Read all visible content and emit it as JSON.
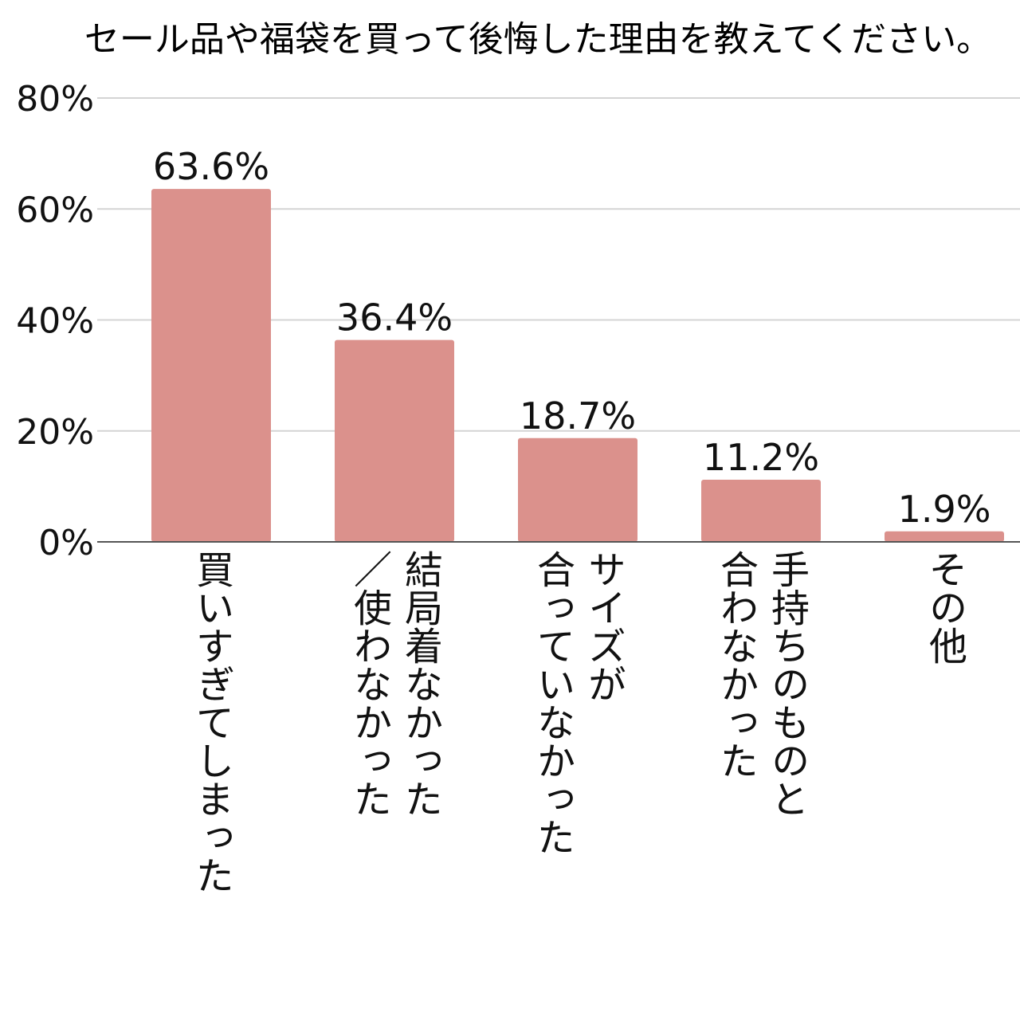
{
  "chart_data": {
    "type": "bar",
    "title": "セール品や福袋を買って後悔した理由を教えてください。",
    "categories": [
      "買いすぎてしまった",
      "結局着なかった／使わなかった",
      "サイズが合っていなかった",
      "手持ちのものと合わなかった",
      "その他"
    ],
    "category_lines": [
      [
        "買いすぎてしまった"
      ],
      [
        "結局着なかった",
        "／使わなかった"
      ],
      [
        "サイズが",
        "合っていなかった"
      ],
      [
        "手持ちのものと",
        "合わなかった"
      ],
      [
        "その他"
      ]
    ],
    "values": [
      63.6,
      36.4,
      18.7,
      11.2,
      1.9
    ],
    "data_labels": [
      "63.6%",
      "36.4%",
      "18.7%",
      "11.2%",
      "1.9%"
    ],
    "ylim": [
      0,
      80
    ],
    "yticks": [
      0,
      20,
      40,
      60,
      80
    ],
    "ytick_labels": [
      "0%",
      "20%",
      "40%",
      "60%",
      "80%"
    ],
    "xlabel": "",
    "ylabel": "",
    "grid": true,
    "legend": "none",
    "colors": {
      "bar": "#db918c",
      "grid": "#d4d4d4",
      "axis": "#555555",
      "text": "#111111"
    }
  }
}
